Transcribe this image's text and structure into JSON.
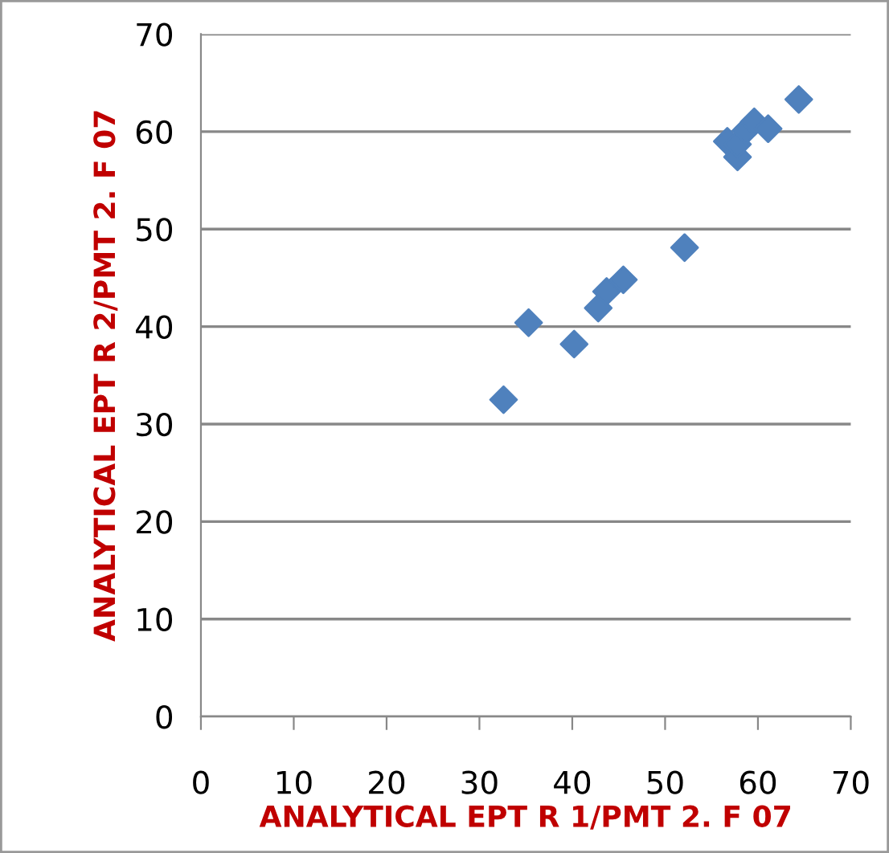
{
  "chart_data": {
    "type": "scatter",
    "xlabel": "ANALYTICAL EPT R 1/PMT 2. F 07",
    "ylabel": "ANALYTICAL EPT R 2/PMT 2. F 07",
    "x": [
      32.6,
      35.3,
      40.2,
      42.2,
      42.8,
      43.1,
      43.7,
      45.5,
      52.1,
      56.7,
      57.8,
      57.8,
      58.7,
      59.6,
      61.1,
      64.4
    ],
    "series": [
      {
        "color": "#4f81bd",
        "values": [
          32.5,
          40.4,
          38.2,
          null,
          41.9,
          null,
          43.6,
          44.8,
          48.1,
          59.0,
          57.4,
          58.7,
          60.1,
          61.0,
          60.3,
          63.3
        ]
      }
    ],
    "xlim": [
      0,
      70
    ],
    "ylim": [
      0,
      70
    ],
    "xticks": [
      0,
      10,
      20,
      30,
      40,
      50,
      60,
      70
    ],
    "yticks": [
      0,
      10,
      20,
      30,
      40,
      50,
      60,
      70
    ],
    "grid": "y",
    "marker": "diamond",
    "legend": false
  }
}
